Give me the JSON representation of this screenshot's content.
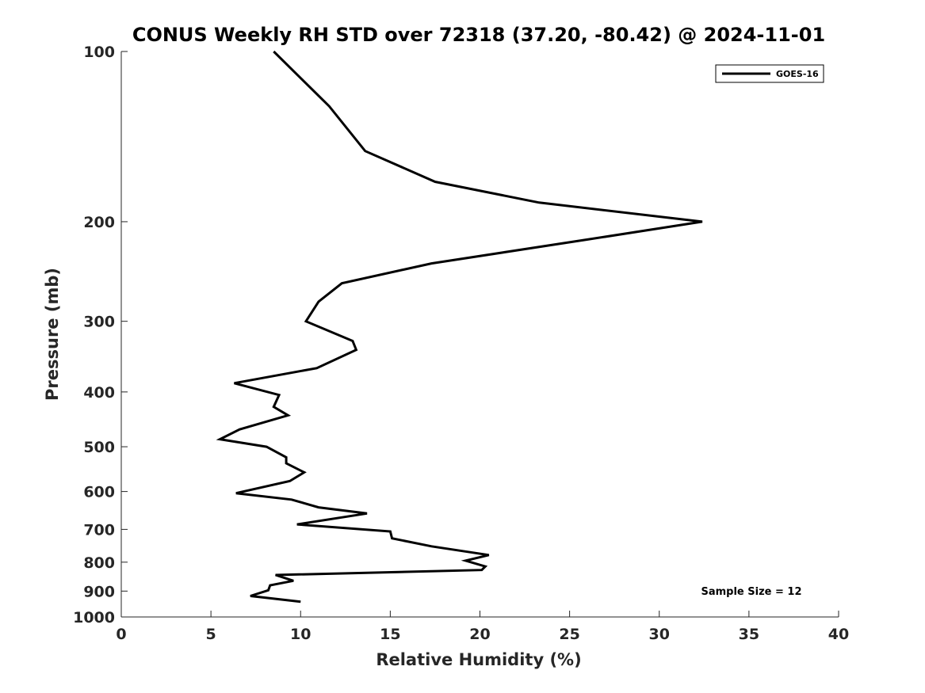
{
  "chart_data": {
    "type": "line",
    "title": "CONUS Weekly RH STD over 72318 (37.20, -80.42) @ 2024-11-01",
    "xlabel": "Relative Humidity (%)",
    "ylabel": "Pressure (mb)",
    "xlim": [
      0,
      40
    ],
    "ylim": [
      1000,
      100
    ],
    "y_scale": "log",
    "y_reversed": true,
    "x_ticks": [
      0,
      5,
      10,
      15,
      20,
      25,
      30,
      35,
      40
    ],
    "x_tick_labels": [
      "0",
      "5",
      "10",
      "15",
      "20",
      "25",
      "30",
      "35",
      "40"
    ],
    "y_ticks": [
      100,
      200,
      300,
      400,
      500,
      600,
      700,
      800,
      900,
      1000
    ],
    "y_tick_labels": [
      "100",
      "200",
      "300",
      "400",
      "500",
      "600",
      "700",
      "800",
      "900",
      "1000"
    ],
    "grid": false,
    "legend_position": "top-right",
    "series": [
      {
        "name": "GOES-16",
        "color": "#000000",
        "points": [
          [
            8.5,
            100
          ],
          [
            11.6,
            125
          ],
          [
            13.6,
            150
          ],
          [
            17.5,
            170
          ],
          [
            23.3,
            185
          ],
          [
            32.4,
            200
          ],
          [
            26.0,
            215
          ],
          [
            17.3,
            237
          ],
          [
            12.3,
            257
          ],
          [
            11.0,
            277
          ],
          [
            10.3,
            300
          ],
          [
            12.9,
            325
          ],
          [
            13.1,
            337
          ],
          [
            10.9,
            363
          ],
          [
            6.3,
            386
          ],
          [
            8.8,
            405
          ],
          [
            8.5,
            425
          ],
          [
            9.3,
            440
          ],
          [
            6.6,
            466
          ],
          [
            5.5,
            485
          ],
          [
            8.1,
            500
          ],
          [
            9.2,
            522
          ],
          [
            9.2,
            535
          ],
          [
            10.2,
            555
          ],
          [
            9.4,
            575
          ],
          [
            6.4,
            604
          ],
          [
            9.5,
            620
          ],
          [
            11.0,
            640
          ],
          [
            13.7,
            656
          ],
          [
            9.8,
            686
          ],
          [
            15.0,
            706
          ],
          [
            15.1,
            726
          ],
          [
            17.3,
            750
          ],
          [
            20.5,
            777
          ],
          [
            19.2,
            795
          ],
          [
            20.3,
            814
          ],
          [
            20.1,
            826
          ],
          [
            8.6,
            843
          ],
          [
            9.6,
            863
          ],
          [
            8.3,
            879
          ],
          [
            8.2,
            897
          ],
          [
            7.2,
            918
          ],
          [
            10.0,
            940
          ]
        ]
      }
    ],
    "annotation": "Sample Size = 12"
  }
}
